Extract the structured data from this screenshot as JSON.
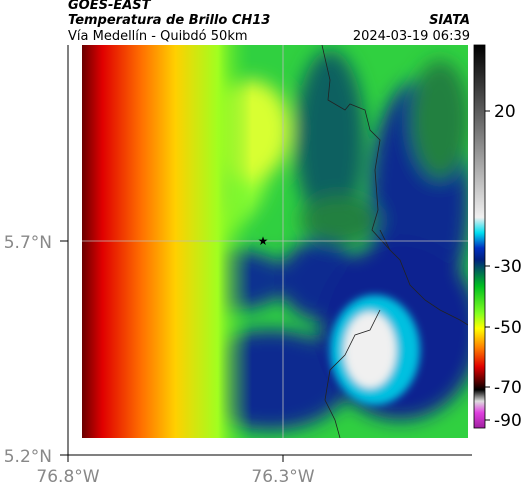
{
  "header": {
    "satellite": "GOES-EAST",
    "product": "Temperatura de Brillo CH13",
    "source": "SIATA",
    "route": "Vía Medellín - Quibdó 50km",
    "timestamp": "2024-03-19 06:39"
  },
  "axes": {
    "y_labels": [
      "5.7°N",
      "5.2°N"
    ],
    "x_labels": [
      "76.8°W",
      "76.3°W"
    ]
  },
  "colorbar": {
    "ticks": [
      20,
      -30,
      -50,
      -70,
      -90
    ]
  }
}
